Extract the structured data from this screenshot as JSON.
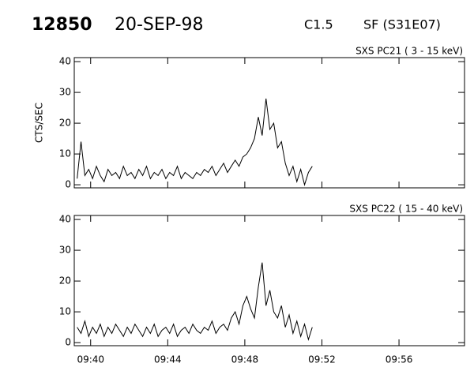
{
  "header": {
    "event": "12850",
    "date": "20-SEP-98",
    "class": "C1.5",
    "flare": "SF (S31E07)"
  },
  "chart_data": [
    {
      "type": "line",
      "title": "SXS PC21  (  3 - 15 keV)",
      "y_label": "CTS/SEC",
      "xlim": [
        39.15,
        59.4
      ],
      "xticks": [
        40,
        44,
        48,
        52,
        56
      ],
      "ylim": [
        -1,
        41.3
      ],
      "yticks": [
        0,
        10,
        20,
        30,
        40
      ],
      "series": [
        {
          "color": "#000000",
          "x": [
            39.3,
            39.5,
            39.7,
            39.9,
            40.1,
            40.3,
            40.5,
            40.7,
            40.9,
            41.1,
            41.3,
            41.5,
            41.7,
            41.9,
            42.1,
            42.3,
            42.5,
            42.7,
            42.9,
            43.1,
            43.3,
            43.5,
            43.7,
            43.9,
            44.1,
            44.3,
            44.5,
            44.7,
            44.9,
            45.1,
            45.3,
            45.5,
            45.7,
            45.9,
            46.1,
            46.3,
            46.5,
            46.7,
            46.9,
            47.1,
            47.3,
            47.5,
            47.7,
            47.9,
            48.1,
            48.3,
            48.5,
            48.7,
            48.9,
            49.1,
            49.3,
            49.5,
            49.7,
            49.9,
            50.1,
            50.3,
            50.5,
            50.7,
            50.9,
            51.1,
            51.3,
            51.5
          ],
          "values": [
            2,
            14,
            3,
            5,
            2,
            6,
            3,
            1,
            5,
            3,
            4,
            2,
            6,
            3,
            4,
            2,
            5,
            3,
            6,
            2,
            4,
            3,
            5,
            2,
            4,
            3,
            6,
            2,
            4,
            3,
            2,
            4,
            3,
            5,
            4,
            6,
            3,
            5,
            7,
            4,
            6,
            8,
            6,
            9,
            10,
            12,
            15,
            22,
            16,
            28,
            18,
            20,
            12,
            14,
            7,
            3,
            6,
            1,
            5,
            0,
            4,
            6
          ]
        }
      ]
    },
    {
      "type": "line",
      "title": "SXS PC22  ( 15 - 40 keV)",
      "xlim": [
        39.15,
        59.4
      ],
      "xticks": [
        {
          "value": 40,
          "label": "09:40"
        },
        {
          "value": 44,
          "label": "09:44"
        },
        {
          "value": 48,
          "label": "09:48"
        },
        {
          "value": 52,
          "label": "09:52"
        },
        {
          "value": 56,
          "label": "09:56"
        }
      ],
      "ylim": [
        -1,
        41.3
      ],
      "yticks": [
        0,
        10,
        20,
        30,
        40
      ],
      "series": [
        {
          "color": "#000000",
          "x": [
            39.3,
            39.5,
            39.7,
            39.9,
            40.1,
            40.3,
            40.5,
            40.7,
            40.9,
            41.1,
            41.3,
            41.5,
            41.7,
            41.9,
            42.1,
            42.3,
            42.5,
            42.7,
            42.9,
            43.1,
            43.3,
            43.5,
            43.7,
            43.9,
            44.1,
            44.3,
            44.5,
            44.7,
            44.9,
            45.1,
            45.3,
            45.5,
            45.7,
            45.9,
            46.1,
            46.3,
            46.5,
            46.7,
            46.9,
            47.1,
            47.3,
            47.5,
            47.7,
            47.9,
            48.1,
            48.3,
            48.5,
            48.7,
            48.9,
            49.1,
            49.3,
            49.5,
            49.7,
            49.9,
            50.1,
            50.3,
            50.5,
            50.7,
            50.9,
            51.1,
            51.3,
            51.5
          ],
          "values": [
            5,
            3,
            7,
            2,
            5,
            3,
            6,
            2,
            5,
            3,
            6,
            4,
            2,
            5,
            3,
            6,
            4,
            2,
            5,
            3,
            6,
            2,
            4,
            5,
            3,
            6,
            2,
            4,
            5,
            3,
            6,
            4,
            3,
            5,
            4,
            7,
            3,
            5,
            6,
            4,
            8,
            10,
            6,
            12,
            15,
            11,
            8,
            18,
            26,
            12,
            17,
            10,
            8,
            12,
            5,
            9,
            3,
            7,
            2,
            6,
            1,
            5
          ]
        }
      ]
    }
  ]
}
